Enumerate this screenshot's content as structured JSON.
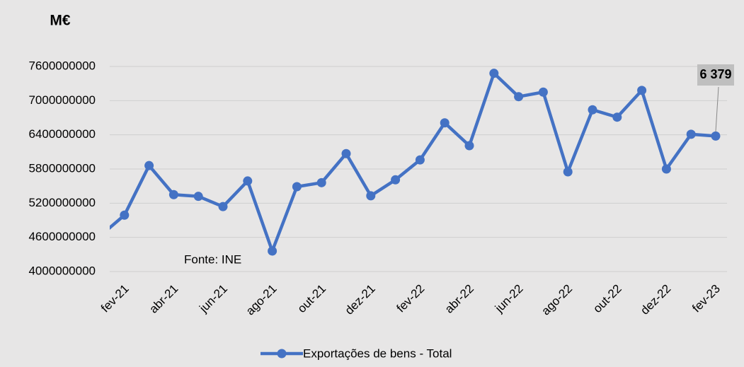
{
  "chart_data": {
    "type": "line",
    "title": "M€",
    "annotations": [
      "Fonte: INE"
    ],
    "categories": [
      null,
      "fev-21",
      null,
      "abr-21",
      null,
      "jun-21",
      null,
      "ago-21",
      null,
      "out-21",
      null,
      "dez-21",
      null,
      "fev-22",
      null,
      "abr-22",
      null,
      "jun-22",
      null,
      "ago-22",
      null,
      "out-22",
      null,
      "dez-22",
      null,
      "fev-23"
    ],
    "series": [
      {
        "name": "Exportações de bens - Total",
        "color": "#4472c4",
        "values": [
          4620000000,
          4990000000,
          5860000000,
          5350000000,
          5320000000,
          5140000000,
          5590000000,
          4360000000,
          5490000000,
          5560000000,
          6070000000,
          5330000000,
          5610000000,
          5960000000,
          6610000000,
          6210000000,
          7480000000,
          7070000000,
          7150000000,
          5750000000,
          6840000000,
          6710000000,
          7180000000,
          5800000000,
          6410000000,
          6379000000
        ],
        "value_labels": [
          null,
          null,
          null,
          null,
          null,
          null,
          null,
          null,
          null,
          null,
          null,
          null,
          null,
          null,
          null,
          null,
          null,
          null,
          null,
          null,
          null,
          null,
          null,
          null,
          null,
          "6 379"
        ]
      }
    ],
    "ylim": [
      4000000000,
      7600000000
    ],
    "yticks": [
      4000000000,
      4600000000,
      5200000000,
      5800000000,
      6400000000,
      7000000000,
      7600000000
    ],
    "grid": true,
    "legend": "bottom"
  }
}
